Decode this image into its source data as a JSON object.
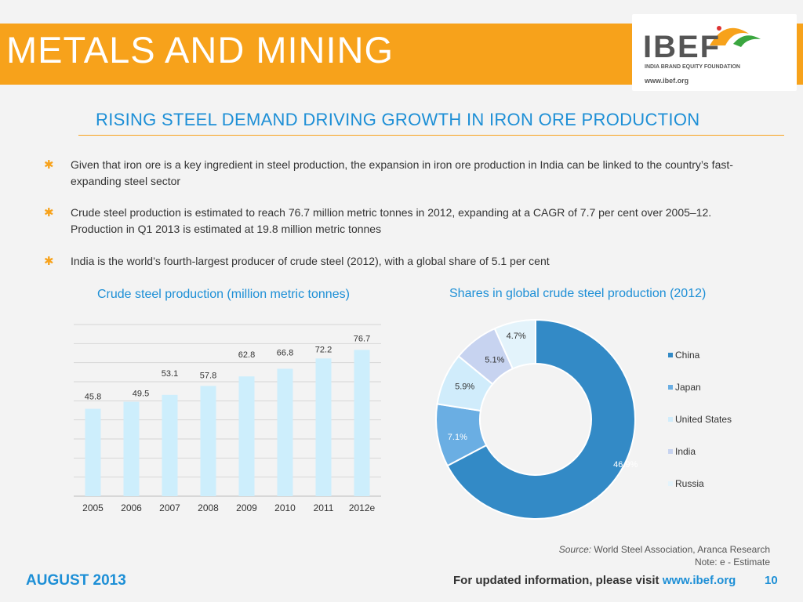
{
  "header": {
    "title": "METALS AND MINING"
  },
  "logo": {
    "name": "IBEF",
    "tagline": "INDIA BRAND EQUITY FOUNDATION",
    "url": "www.ibef.org"
  },
  "subtitle": "RISING STEEL DEMAND DRIVING GROWTH IN IRON ORE PRODUCTION",
  "bullets": [
    "Given that iron ore is a key ingredient in steel production, the expansion in iron ore production in India can be linked to the country’s fast-expanding steel sector",
    "Crude steel production is estimated to reach 76.7 million metric tonnes in 2012, expanding at a CAGR of 7.7 per cent over 2005–12. Production in Q1 2013 is estimated at 19.8 million metric tonnes",
    "India is the world’s fourth-largest producer of crude steel (2012), with a global share of 5.1 per cent"
  ],
  "chart_data": [
    {
      "type": "bar",
      "title": "Crude steel production (million metric tonnes)",
      "categories": [
        "2005",
        "2006",
        "2007",
        "2008",
        "2009",
        "2010",
        "2011",
        "2012e"
      ],
      "values": [
        45.8,
        49.5,
        53.1,
        57.8,
        62.8,
        66.8,
        72.2,
        76.7
      ],
      "ylim": [
        0,
        90
      ],
      "grid": true,
      "bar_color": "#cdeefc"
    },
    {
      "type": "pie",
      "title": "Shares in global crude steel production (2012)",
      "donut": true,
      "legend_position": "right",
      "categories": [
        "China",
        "Japan",
        "United States",
        "India",
        "Russia"
      ],
      "values": [
        46.9,
        7.1,
        5.9,
        5.1,
        4.7
      ],
      "labels": [
        "46.9%",
        "7.1%",
        "5.9%",
        "5.1%",
        "4.7%"
      ],
      "colors": [
        "#338ac6",
        "#6aaee3",
        "#d0ecfb",
        "#c7d3f0",
        "#e3f3fb"
      ]
    }
  ],
  "source_label": "Source:",
  "source_text": " World Steel Association, Aranca Research",
  "note": "Note: e - Estimate",
  "footer": {
    "date": "AUGUST 2013",
    "info": "For updated information, please visit ",
    "url": "www.ibef.org",
    "page": "10"
  }
}
